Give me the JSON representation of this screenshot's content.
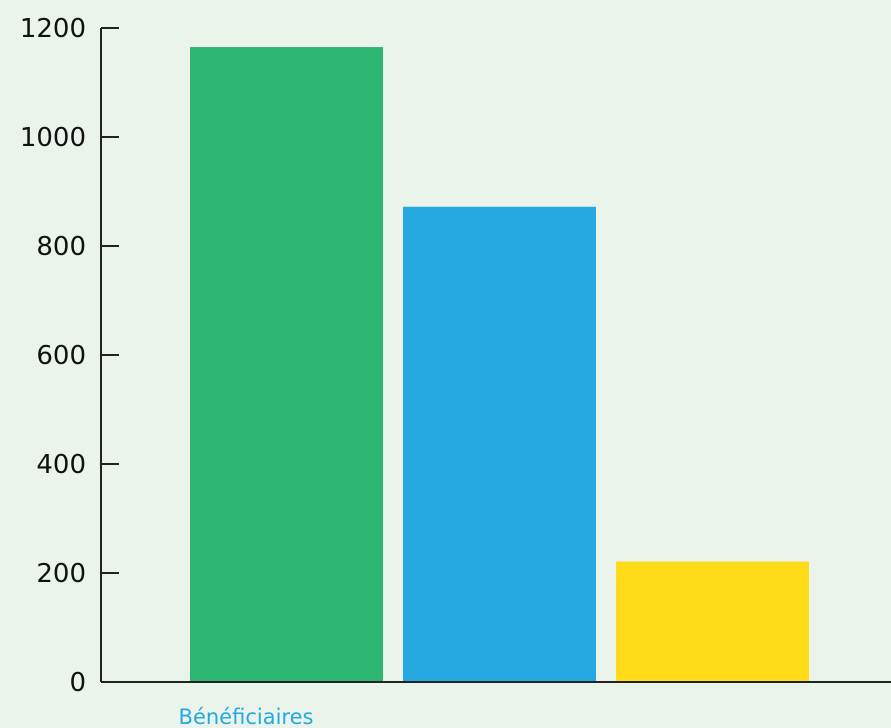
{
  "chart_data": {
    "type": "bar",
    "categories": [
      "Bénéficiaires"
    ],
    "series": [
      {
        "values": [
          1165
        ],
        "color": "#2db672"
      },
      {
        "values": [
          872
        ],
        "color": "#25a9e0"
      },
      {
        "values": [
          221
        ],
        "color": "#ffdc17"
      }
    ],
    "ylim": [
      0,
      1200
    ],
    "yticks": [
      0,
      200,
      400,
      600,
      800,
      1000,
      1200
    ],
    "ytick_labels": [
      "0",
      "200",
      "400",
      "600",
      "800",
      "1000",
      "1200"
    ],
    "grid": false,
    "colors": {
      "background": "#eaf4ea",
      "axis": "#222222",
      "category_label": "#25a9e0"
    }
  }
}
